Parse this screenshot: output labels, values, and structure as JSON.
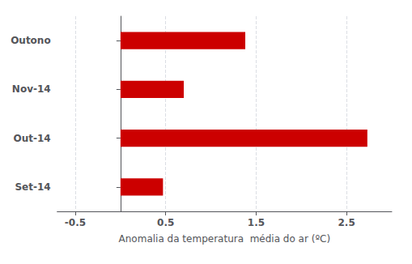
{
  "chart_data": {
    "type": "bar",
    "orientation": "horizontal",
    "categories": [
      "Outono",
      "Nov-14",
      "Out-14",
      "Set-14"
    ],
    "values": [
      1.38,
      0.7,
      2.73,
      0.47
    ],
    "color": "#cc0000",
    "xlabel": "Anomalia da temperatura  média do ar (ºC)",
    "xlim": [
      -0.7,
      3.0
    ],
    "xticks": [
      -0.5,
      0.5,
      1.5,
      2.5
    ],
    "grid": true
  }
}
